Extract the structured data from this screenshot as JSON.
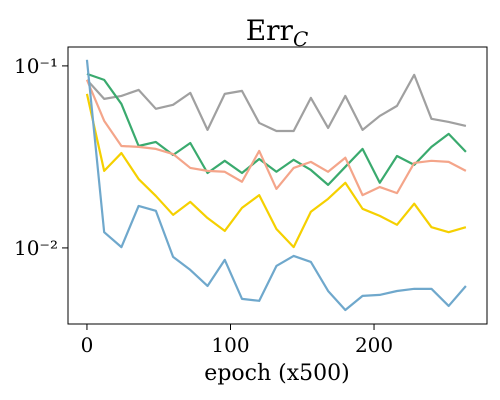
{
  "chart_data": {
    "type": "line",
    "title": "Err",
    "title_subscript": "C",
    "xlabel": "epoch (x500)",
    "x": [
      0,
      12,
      24,
      36,
      48,
      60,
      72,
      84,
      96,
      108,
      120,
      132,
      144,
      156,
      168,
      180,
      192,
      204,
      216,
      228,
      240,
      252,
      264
    ],
    "series": [
      {
        "color": "#a0a0a0",
        "values": [
          0.0838,
          0.0659,
          0.0684,
          0.0738,
          0.0581,
          0.0611,
          0.0711,
          0.0445,
          0.0702,
          0.0729,
          0.0486,
          0.0439,
          0.0439,
          0.0667,
          0.0456,
          0.0684,
          0.0445,
          0.0531,
          0.0603,
          0.0893,
          0.0512,
          0.0492,
          0.0468
        ]
      },
      {
        "color": "#3aaa6e",
        "values": [
          0.0904,
          0.0838,
          0.0618,
          0.0363,
          0.0382,
          0.0324,
          0.0377,
          0.0258,
          0.0301,
          0.0258,
          0.0308,
          0.0262,
          0.0305,
          0.0268,
          0.0222,
          0.0279,
          0.035,
          0.0228,
          0.032,
          0.0286,
          0.0359,
          0.0423,
          0.0337
        ]
      },
      {
        "color": "#f4a58a",
        "values": [
          0.0838,
          0.0499,
          0.0363,
          0.0359,
          0.035,
          0.0328,
          0.0275,
          0.0265,
          0.0262,
          0.0231,
          0.0341,
          0.0211,
          0.0275,
          0.0297,
          0.0262,
          0.0313,
          0.0195,
          0.0216,
          0.02,
          0.0293,
          0.0301,
          0.0297,
          0.0265
        ]
      },
      {
        "color": "#f5d000",
        "values": [
          0.0702,
          0.0265,
          0.0332,
          0.0239,
          0.0193,
          0.0152,
          0.0179,
          0.0146,
          0.0124,
          0.0166,
          0.0195,
          0.0127,
          0.0101,
          0.0158,
          0.0186,
          0.0228,
          0.0164,
          0.015,
          0.0134,
          0.0175,
          0.013,
          0.0122,
          0.013
        ]
      },
      {
        "color": "#6fa8cc",
        "values": [
          0.108,
          0.0122,
          0.0101,
          0.017,
          0.016,
          0.00893,
          0.00757,
          0.00618,
          0.0086,
          0.00525,
          0.00512,
          0.00796,
          0.00904,
          0.00838,
          0.0058,
          0.00456,
          0.00545,
          0.00552,
          0.0058,
          0.00596,
          0.00596,
          0.0048,
          0.00618
        ]
      }
    ],
    "xlim": [
      -13.2,
      278.7
    ],
    "xticks": [
      0,
      100,
      200
    ],
    "ylim": [
      0.00382,
      0.127
    ],
    "yscale": "log",
    "yticks": [
      {
        "value": 0.1,
        "label": "10⁻¹"
      },
      {
        "value": 0.01,
        "label": "10⁻²"
      }
    ]
  }
}
